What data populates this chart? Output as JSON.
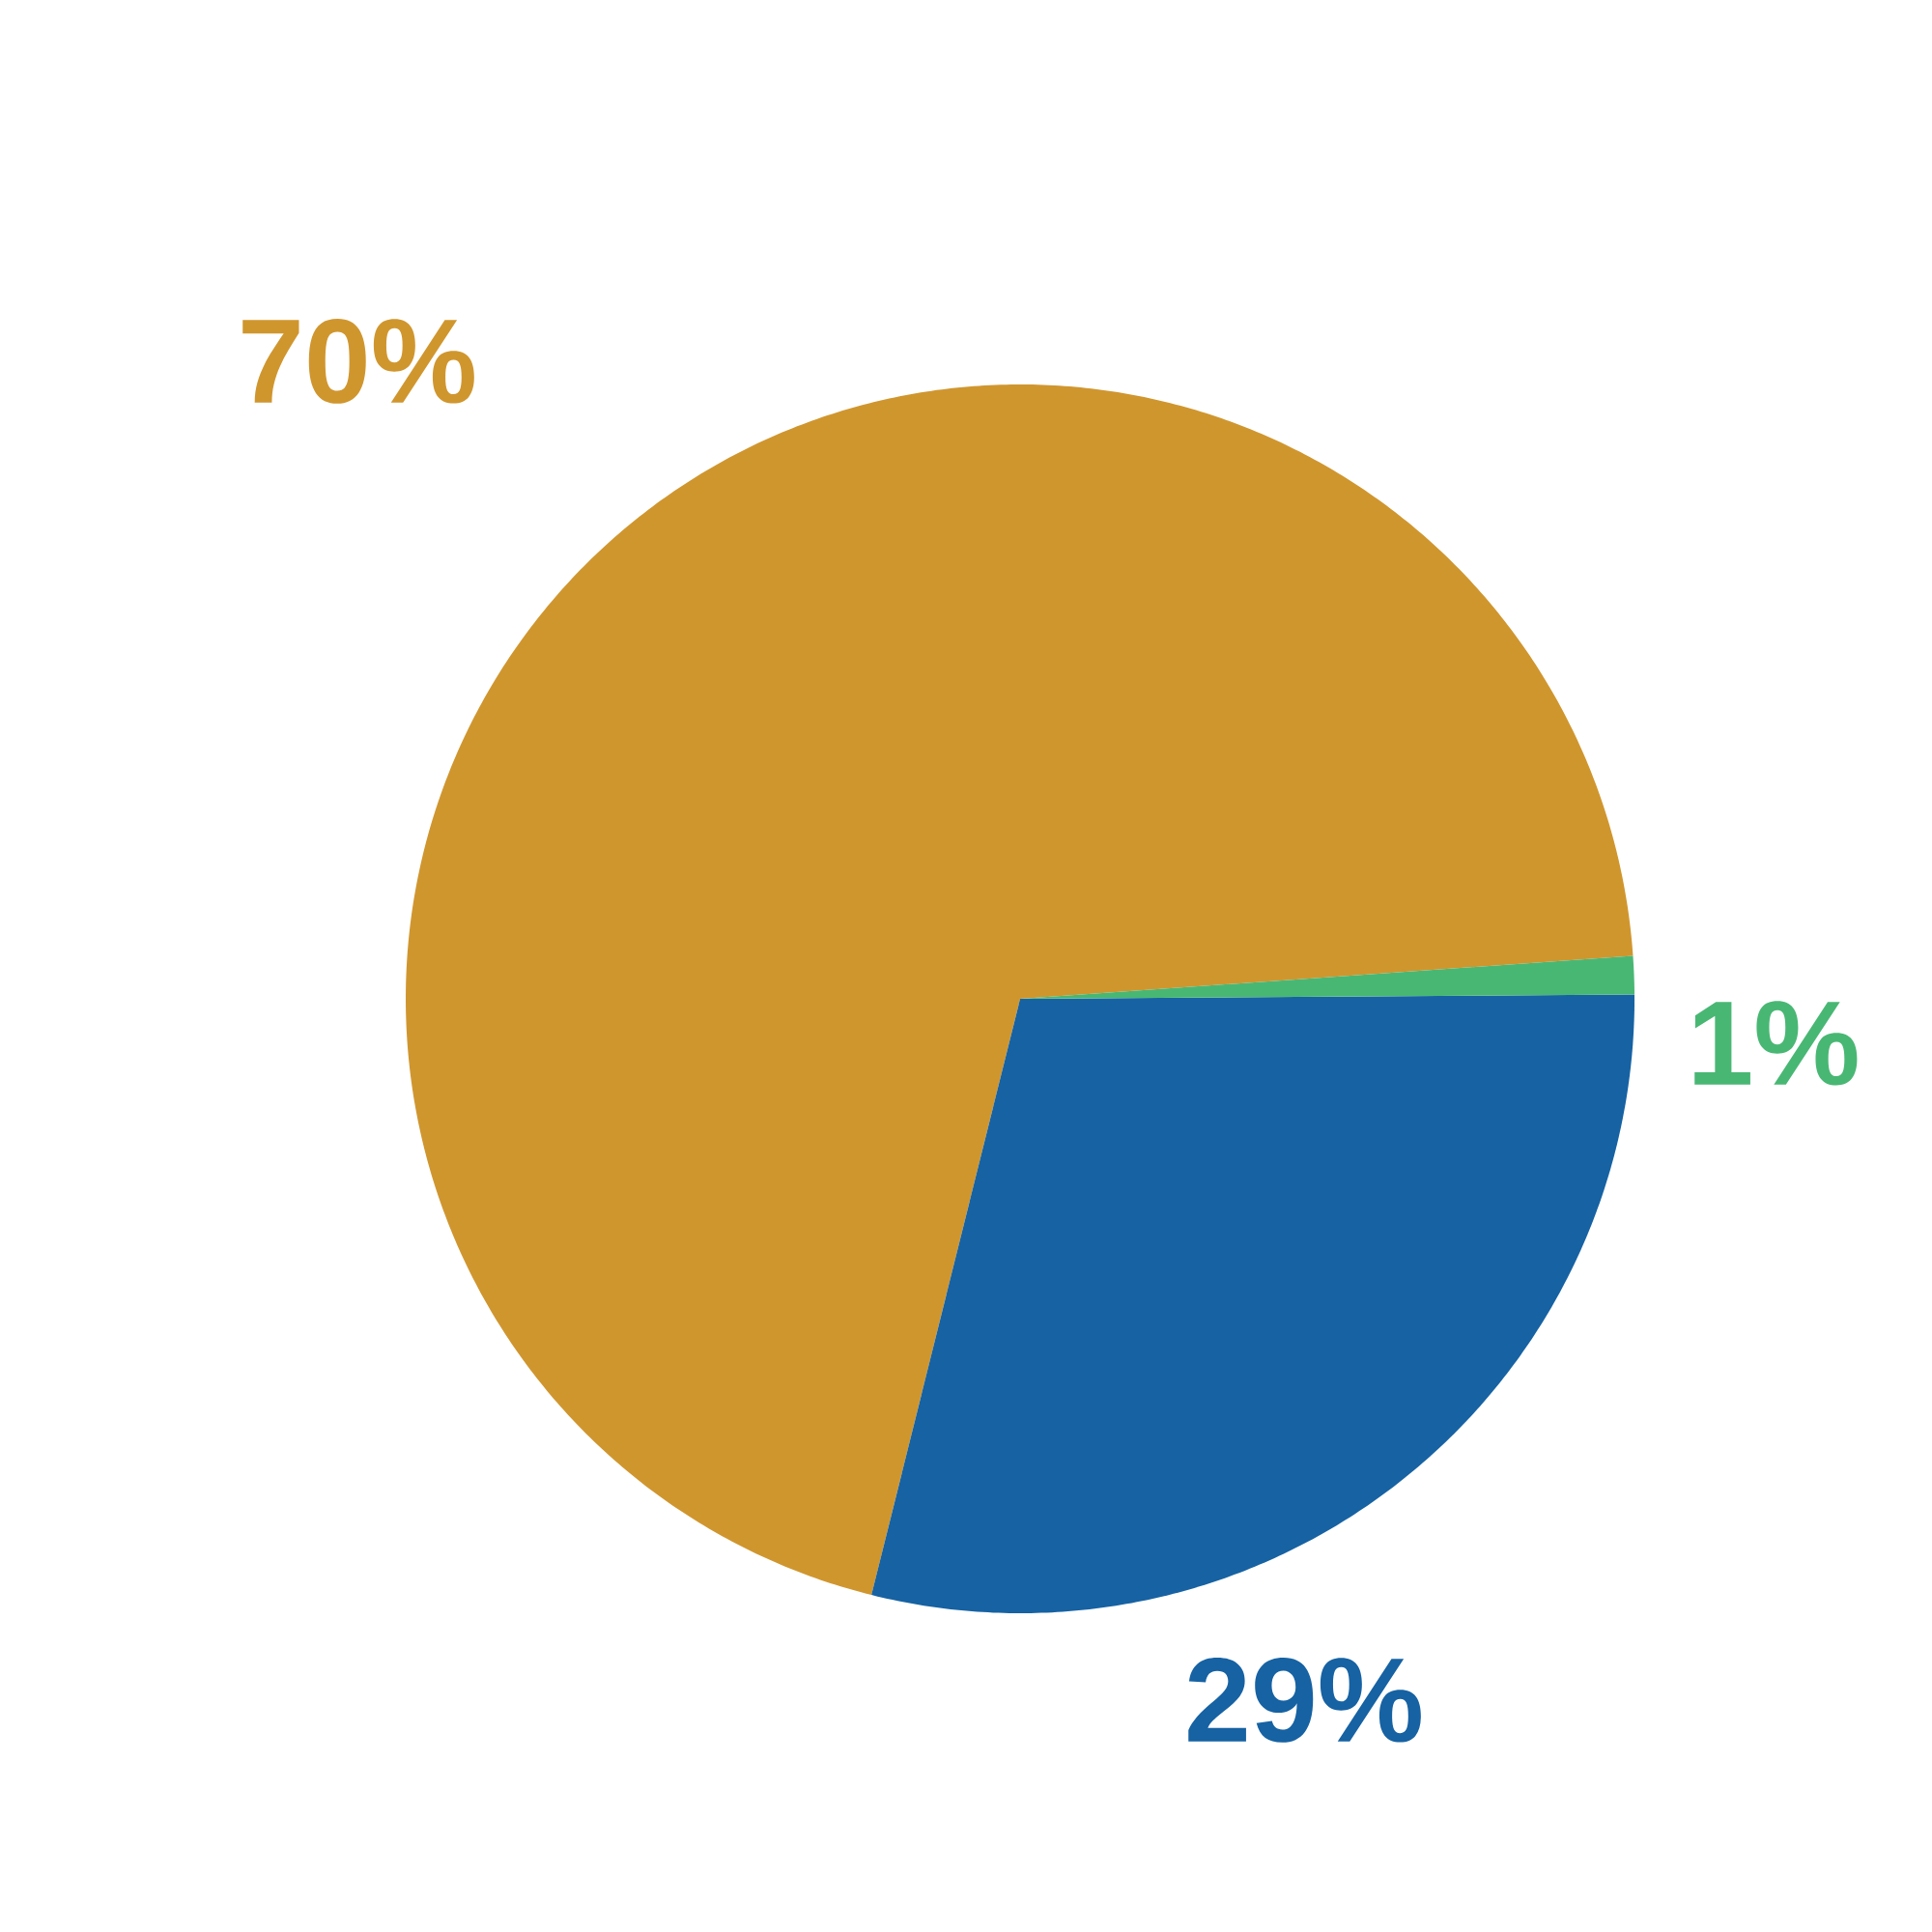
{
  "chart_data": {
    "type": "pie",
    "categories": [
      null,
      null,
      null
    ],
    "values": [
      70,
      29,
      1
    ],
    "colors": [
      "#d0962e",
      "#1662a3",
      "#49b774"
    ],
    "value_labels": [
      "70%",
      "29%",
      "1%"
    ]
  }
}
